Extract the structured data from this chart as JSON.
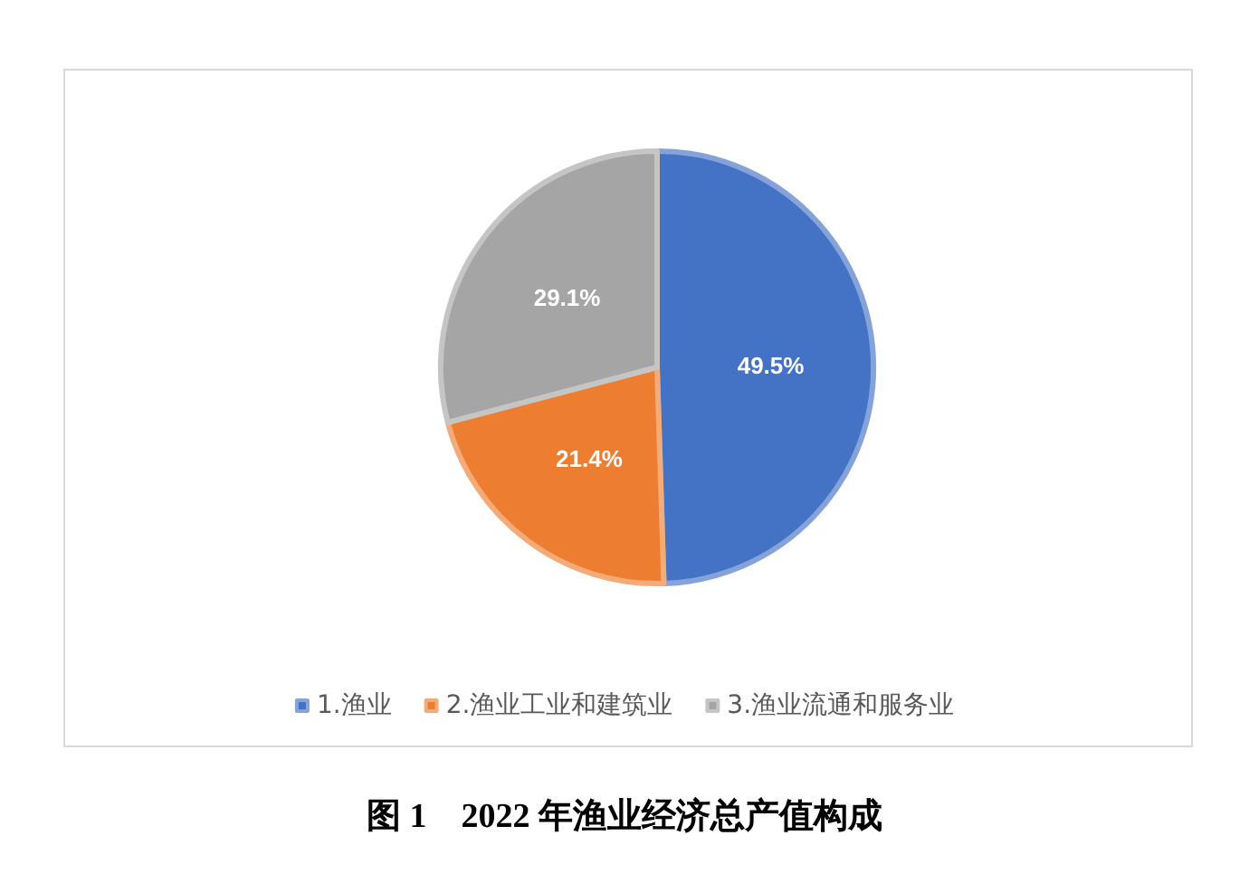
{
  "chart_data": {
    "type": "pie",
    "title": "图 1　2022 年渔业经济总产值构成",
    "categories": [
      "1.渔业",
      "2.渔业工业和建筑业",
      "3.渔业流通和服务业"
    ],
    "values": [
      49.5,
      21.4,
      29.1
    ],
    "colors": [
      "#4472c4",
      "#ed7d31",
      "#a5a5a5"
    ],
    "value_labels": [
      "49.5%",
      "21.4%",
      "29.1%"
    ],
    "legend": "bottom"
  }
}
